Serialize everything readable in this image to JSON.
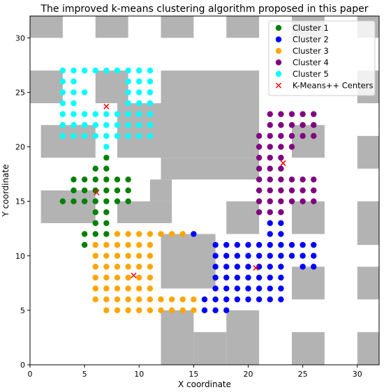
{
  "chart_data": {
    "type": "scatter",
    "title": "The improved k-means clustering algorithm proposed in this paper",
    "xlabel": "X coordinate",
    "ylabel": "Y coordinate",
    "xlim": [
      0,
      32
    ],
    "ylim": [
      0,
      32
    ],
    "xticks": [
      "0",
      "5",
      "10",
      "15",
      "20",
      "25",
      "30"
    ],
    "yticks": [
      "0",
      "5",
      "10",
      "15",
      "20",
      "25",
      "30"
    ],
    "grid": false,
    "legend_position": "top-right",
    "obstacle_color": "#b3b3b3",
    "obstacles": [
      [
        0,
        3,
        30,
        32
      ],
      [
        6,
        9,
        30,
        32
      ],
      [
        12,
        15,
        30,
        32
      ],
      [
        18,
        21,
        30,
        32
      ],
      [
        24,
        27,
        30,
        32
      ],
      [
        30,
        32,
        30,
        32
      ],
      [
        0,
        3,
        24,
        27
      ],
      [
        6,
        9,
        24,
        27
      ],
      [
        12,
        21,
        24,
        27
      ],
      [
        1,
        6,
        19,
        22
      ],
      [
        8,
        21,
        19,
        24
      ],
      [
        12,
        21,
        17,
        19
      ],
      [
        1,
        6,
        13,
        16
      ],
      [
        8,
        13,
        13,
        15
      ],
      [
        11,
        13,
        15,
        17
      ],
      [
        18,
        21,
        12,
        15
      ],
      [
        24,
        27,
        12,
        15
      ],
      [
        24,
        27,
        19,
        22
      ],
      [
        30,
        32,
        18,
        21
      ],
      [
        12,
        17,
        7,
        12
      ],
      [
        24,
        27,
        6,
        9
      ],
      [
        30,
        32,
        6,
        9
      ],
      [
        12,
        15,
        0,
        5
      ],
      [
        15,
        18,
        0,
        3
      ],
      [
        18,
        21,
        0,
        5
      ],
      [
        24,
        27,
        0,
        3
      ],
      [
        30,
        32,
        0,
        3
      ],
      [
        30,
        32,
        11,
        15
      ],
      [
        30,
        32,
        24,
        27
      ]
    ],
    "series": [
      {
        "name": "Cluster 1",
        "color": "#008000",
        "marker": "circle",
        "points": [
          [
            7,
            19
          ],
          [
            6,
            18
          ],
          [
            7,
            18
          ],
          [
            4,
            17
          ],
          [
            5,
            17
          ],
          [
            6,
            17
          ],
          [
            7,
            17
          ],
          [
            8,
            17
          ],
          [
            9,
            17
          ],
          [
            4,
            16
          ],
          [
            5,
            16
          ],
          [
            6,
            16
          ],
          [
            7,
            16
          ],
          [
            8,
            16
          ],
          [
            9,
            16
          ],
          [
            4,
            15
          ],
          [
            5,
            15
          ],
          [
            6,
            15
          ],
          [
            7,
            15
          ],
          [
            8,
            15
          ],
          [
            9,
            15
          ],
          [
            3,
            15
          ],
          [
            6,
            14
          ],
          [
            7,
            14
          ],
          [
            6,
            13
          ],
          [
            7,
            13
          ],
          [
            6,
            12
          ],
          [
            7,
            12
          ],
          [
            5,
            12
          ],
          [
            5,
            11
          ]
        ]
      },
      {
        "name": "Cluster 2",
        "color": "#0000ff",
        "marker": "circle",
        "points": [
          [
            22,
            13
          ],
          [
            23,
            13
          ],
          [
            22,
            12
          ],
          [
            23,
            12
          ],
          [
            15,
            12
          ],
          [
            17,
            11
          ],
          [
            18,
            11
          ],
          [
            19,
            11
          ],
          [
            20,
            11
          ],
          [
            21,
            11
          ],
          [
            22,
            11
          ],
          [
            23,
            11
          ],
          [
            24,
            11
          ],
          [
            25,
            11
          ],
          [
            26,
            11
          ],
          [
            17,
            10
          ],
          [
            18,
            10
          ],
          [
            19,
            10
          ],
          [
            20,
            10
          ],
          [
            21,
            10
          ],
          [
            22,
            10
          ],
          [
            23,
            10
          ],
          [
            24,
            10
          ],
          [
            25,
            10
          ],
          [
            26,
            10
          ],
          [
            17,
            9
          ],
          [
            18,
            9
          ],
          [
            19,
            9
          ],
          [
            20,
            9
          ],
          [
            21,
            9
          ],
          [
            22,
            9
          ],
          [
            23,
            9
          ],
          [
            25,
            9
          ],
          [
            26,
            9
          ],
          [
            17,
            8
          ],
          [
            18,
            8
          ],
          [
            19,
            8
          ],
          [
            20,
            8
          ],
          [
            21,
            8
          ],
          [
            22,
            8
          ],
          [
            23,
            8
          ],
          [
            17,
            7
          ],
          [
            18,
            7
          ],
          [
            19,
            7
          ],
          [
            20,
            7
          ],
          [
            21,
            7
          ],
          [
            22,
            7
          ],
          [
            23,
            7
          ],
          [
            16,
            6
          ],
          [
            17,
            6
          ],
          [
            18,
            6
          ],
          [
            19,
            6
          ],
          [
            20,
            6
          ],
          [
            21,
            6
          ],
          [
            22,
            6
          ],
          [
            23,
            6
          ],
          [
            16,
            5
          ],
          [
            17,
            5
          ],
          [
            18,
            5
          ]
        ]
      },
      {
        "name": "Cluster 3",
        "color": "#ffa500",
        "marker": "circle",
        "points": [
          [
            8,
            12
          ],
          [
            9,
            12
          ],
          [
            10,
            12
          ],
          [
            11,
            12
          ],
          [
            12,
            12
          ],
          [
            13,
            12
          ],
          [
            14,
            12
          ],
          [
            6,
            11
          ],
          [
            7,
            11
          ],
          [
            8,
            11
          ],
          [
            9,
            11
          ],
          [
            10,
            11
          ],
          [
            11,
            11
          ],
          [
            6,
            10
          ],
          [
            7,
            10
          ],
          [
            8,
            10
          ],
          [
            9,
            10
          ],
          [
            10,
            10
          ],
          [
            11,
            10
          ],
          [
            6,
            9
          ],
          [
            7,
            9
          ],
          [
            8,
            9
          ],
          [
            9,
            9
          ],
          [
            10,
            9
          ],
          [
            11,
            9
          ],
          [
            6,
            8
          ],
          [
            7,
            8
          ],
          [
            8,
            8
          ],
          [
            9,
            8
          ],
          [
            10,
            8
          ],
          [
            11,
            8
          ],
          [
            6,
            7
          ],
          [
            7,
            7
          ],
          [
            8,
            7
          ],
          [
            9,
            7
          ],
          [
            10,
            7
          ],
          [
            11,
            7
          ],
          [
            6,
            6
          ],
          [
            7,
            6
          ],
          [
            8,
            6
          ],
          [
            9,
            6
          ],
          [
            10,
            6
          ],
          [
            11,
            6
          ],
          [
            12,
            6
          ],
          [
            13,
            6
          ],
          [
            14,
            6
          ],
          [
            15,
            6
          ],
          [
            7,
            5
          ],
          [
            8,
            5
          ],
          [
            9,
            5
          ],
          [
            10,
            5
          ],
          [
            11,
            5
          ],
          [
            12,
            5
          ],
          [
            13,
            5
          ],
          [
            14,
            5
          ],
          [
            15,
            5
          ]
        ]
      },
      {
        "name": "Cluster 4",
        "color": "#800080",
        "marker": "circle",
        "points": [
          [
            22,
            23
          ],
          [
            23,
            23
          ],
          [
            24,
            23
          ],
          [
            25,
            23
          ],
          [
            26,
            23
          ],
          [
            22,
            22
          ],
          [
            23,
            22
          ],
          [
            24,
            22
          ],
          [
            25,
            22
          ],
          [
            26,
            22
          ],
          [
            21,
            21
          ],
          [
            22,
            21
          ],
          [
            23,
            21
          ],
          [
            24,
            21
          ],
          [
            25,
            21
          ],
          [
            26,
            21
          ],
          [
            21,
            20
          ],
          [
            22,
            20
          ],
          [
            23,
            20
          ],
          [
            24,
            20
          ],
          [
            21,
            19
          ],
          [
            22,
            19
          ],
          [
            23,
            19
          ],
          [
            21,
            18
          ],
          [
            22,
            18
          ],
          [
            23,
            18
          ],
          [
            21,
            17
          ],
          [
            22,
            17
          ],
          [
            23,
            17
          ],
          [
            24,
            17
          ],
          [
            25,
            17
          ],
          [
            26,
            17
          ],
          [
            21,
            16
          ],
          [
            22,
            16
          ],
          [
            23,
            16
          ],
          [
            24,
            16
          ],
          [
            25,
            16
          ],
          [
            26,
            16
          ],
          [
            21,
            15
          ],
          [
            22,
            15
          ],
          [
            23,
            15
          ],
          [
            24,
            15
          ],
          [
            25,
            15
          ],
          [
            26,
            15
          ],
          [
            21,
            14
          ],
          [
            22,
            14
          ],
          [
            23,
            14
          ]
        ]
      },
      {
        "name": "Cluster 5",
        "color": "#00ffff",
        "marker": "circle",
        "points": [
          [
            3,
            27
          ],
          [
            4,
            27
          ],
          [
            5,
            27
          ],
          [
            6,
            27
          ],
          [
            7,
            27
          ],
          [
            8,
            27
          ],
          [
            9,
            27
          ],
          [
            10,
            27
          ],
          [
            11,
            27
          ],
          [
            3,
            26
          ],
          [
            4,
            26
          ],
          [
            9,
            26
          ],
          [
            10,
            26
          ],
          [
            11,
            26
          ],
          [
            3,
            25
          ],
          [
            4,
            25
          ],
          [
            5,
            25
          ],
          [
            9,
            25
          ],
          [
            10,
            25
          ],
          [
            11,
            25
          ],
          [
            3,
            24
          ],
          [
            4,
            24
          ],
          [
            9,
            24
          ],
          [
            10,
            24
          ],
          [
            11,
            24
          ],
          [
            3,
            23
          ],
          [
            4,
            23
          ],
          [
            5,
            23
          ],
          [
            6,
            23
          ],
          [
            7,
            23
          ],
          [
            8,
            23
          ],
          [
            9,
            23
          ],
          [
            10,
            23
          ],
          [
            11,
            23
          ],
          [
            3,
            22
          ],
          [
            4,
            22
          ],
          [
            5,
            22
          ],
          [
            6,
            22
          ],
          [
            7,
            22
          ],
          [
            8,
            22
          ],
          [
            9,
            22
          ],
          [
            10,
            22
          ],
          [
            11,
            22
          ],
          [
            3,
            21
          ],
          [
            4,
            21
          ],
          [
            5,
            21
          ],
          [
            6,
            21
          ],
          [
            7,
            21
          ],
          [
            8,
            21
          ],
          [
            9,
            21
          ],
          [
            10,
            21
          ],
          [
            11,
            21
          ],
          [
            7,
            20
          ]
        ]
      },
      {
        "name": "K-Means++ Centers",
        "color": "#ff0000",
        "marker": "x",
        "points": [
          [
            7,
            23.7
          ],
          [
            6.1,
            15.8
          ],
          [
            9.5,
            8.2
          ],
          [
            20.7,
            8.9
          ],
          [
            23.2,
            18.5
          ]
        ]
      }
    ]
  }
}
